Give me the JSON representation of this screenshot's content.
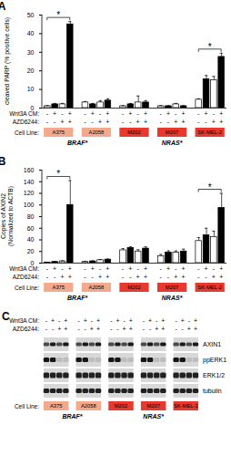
{
  "chart_data": [
    {
      "panel": "A",
      "type": "bar",
      "ylabel": "cleaved PARP (% positive cells)",
      "ylim": [
        0,
        50
      ],
      "yticks": [
        0,
        10,
        20,
        30,
        40,
        50
      ],
      "categories": [
        "A375",
        "A2058",
        "M202",
        "M207",
        "SK-MEL-2"
      ],
      "conditions": [
        {
          "label": "Wnt3A CM:",
          "signs": [
            "-",
            "+",
            "-",
            "+"
          ]
        },
        {
          "label": "AZD6244:",
          "signs": [
            "-",
            "-",
            "+",
            "+"
          ]
        }
      ],
      "colors": [
        "#ffffff",
        "#000000",
        "#ffffff",
        "#000000"
      ],
      "values": [
        [
          1,
          2,
          2,
          45
        ],
        [
          3,
          2,
          3,
          4
        ],
        [
          1,
          2,
          3,
          3
        ],
        [
          1,
          1,
          2,
          1
        ],
        [
          4.5,
          15.5,
          15,
          27.5
        ]
      ],
      "errors": [
        [
          0.3,
          0.5,
          0.5,
          1.5
        ],
        [
          0.5,
          0.5,
          1,
          1
        ],
        [
          0.3,
          0.5,
          3.5,
          1
        ],
        [
          0.3,
          0.3,
          0.5,
          0.3
        ],
        [
          0.5,
          2,
          2,
          2
        ]
      ],
      "significance": [
        {
          "category": "A375",
          "label": "*"
        },
        {
          "category": "SK-MEL-2",
          "label": "*"
        }
      ],
      "cell_line_label": "Cell Line:",
      "mutations": [
        {
          "label": "BRAF*",
          "categories": [
            "A375",
            "A2058"
          ],
          "color": "#f5a98c"
        },
        {
          "label": "NRAS*",
          "categories": [
            "M202",
            "M207",
            "SK-MEL-2"
          ],
          "color": "#e8392f"
        }
      ]
    },
    {
      "panel": "B",
      "type": "bar",
      "ylabel": "Copies of AXIN2\n(Normalized to ACTB)",
      "ylim": [
        0,
        160
      ],
      "yticks": [
        0,
        20,
        40,
        60,
        80,
        100,
        120,
        140,
        160
      ],
      "categories": [
        "A375",
        "A2058",
        "M202",
        "M207",
        "SK-MEL-2"
      ],
      "conditions": [
        {
          "label": "Wnt3A CM:",
          "signs": [
            "-",
            "+",
            "-",
            "+"
          ]
        },
        {
          "label": "AZD6244:",
          "signs": [
            "-",
            "-",
            "+",
            "+"
          ]
        }
      ],
      "colors": [
        "#ffffff",
        "#000000",
        "#ffffff",
        "#000000"
      ],
      "values": [
        [
          1,
          2,
          3,
          100
        ],
        [
          2,
          3,
          5,
          6
        ],
        [
          22,
          26,
          20,
          25
        ],
        [
          12,
          18,
          18,
          20
        ],
        [
          38,
          48,
          45,
          95
        ]
      ],
      "errors": [
        [
          0.5,
          0.5,
          1,
          42
        ],
        [
          1,
          1,
          1,
          1
        ],
        [
          3,
          2,
          3,
          3
        ],
        [
          3,
          3,
          3,
          4
        ],
        [
          6,
          12,
          10,
          25
        ]
      ],
      "significance": [
        {
          "category": "A375",
          "label": "*"
        },
        {
          "category": "SK-MEL-2",
          "label": "*"
        }
      ],
      "cell_line_label": "Cell Line:",
      "mutations": [
        {
          "label": "BRAF*",
          "categories": [
            "A375",
            "A2058"
          ],
          "color": "#f5a98c"
        },
        {
          "label": "NRAS*",
          "categories": [
            "M202",
            "M207",
            "SK-MEL-2"
          ],
          "color": "#e8392f"
        }
      ]
    }
  ],
  "panel_c": {
    "panel": "C",
    "conditions": [
      {
        "label": "Wnt3A CM:",
        "signs": [
          "-",
          "+",
          "-",
          "+"
        ]
      },
      {
        "label": "AZD6244:",
        "signs": [
          "-",
          "-",
          "+",
          "+"
        ]
      }
    ],
    "proteins": [
      "AXIN1",
      "ppERK1",
      "ERK1/2",
      "tubulin"
    ],
    "cell_line_label": "Cell Line:",
    "cell_lines": [
      "A375",
      "A2058",
      "M202",
      "M207",
      "SK-MEL-2"
    ],
    "mutations": [
      {
        "label": "BRAF*",
        "categories": [
          "A375",
          "A2058"
        ],
        "color": "#f5a98c"
      },
      {
        "label": "NRAS*",
        "categories": [
          "M202",
          "M207",
          "SK-MEL-2"
        ],
        "color": "#e8392f"
      }
    ]
  }
}
